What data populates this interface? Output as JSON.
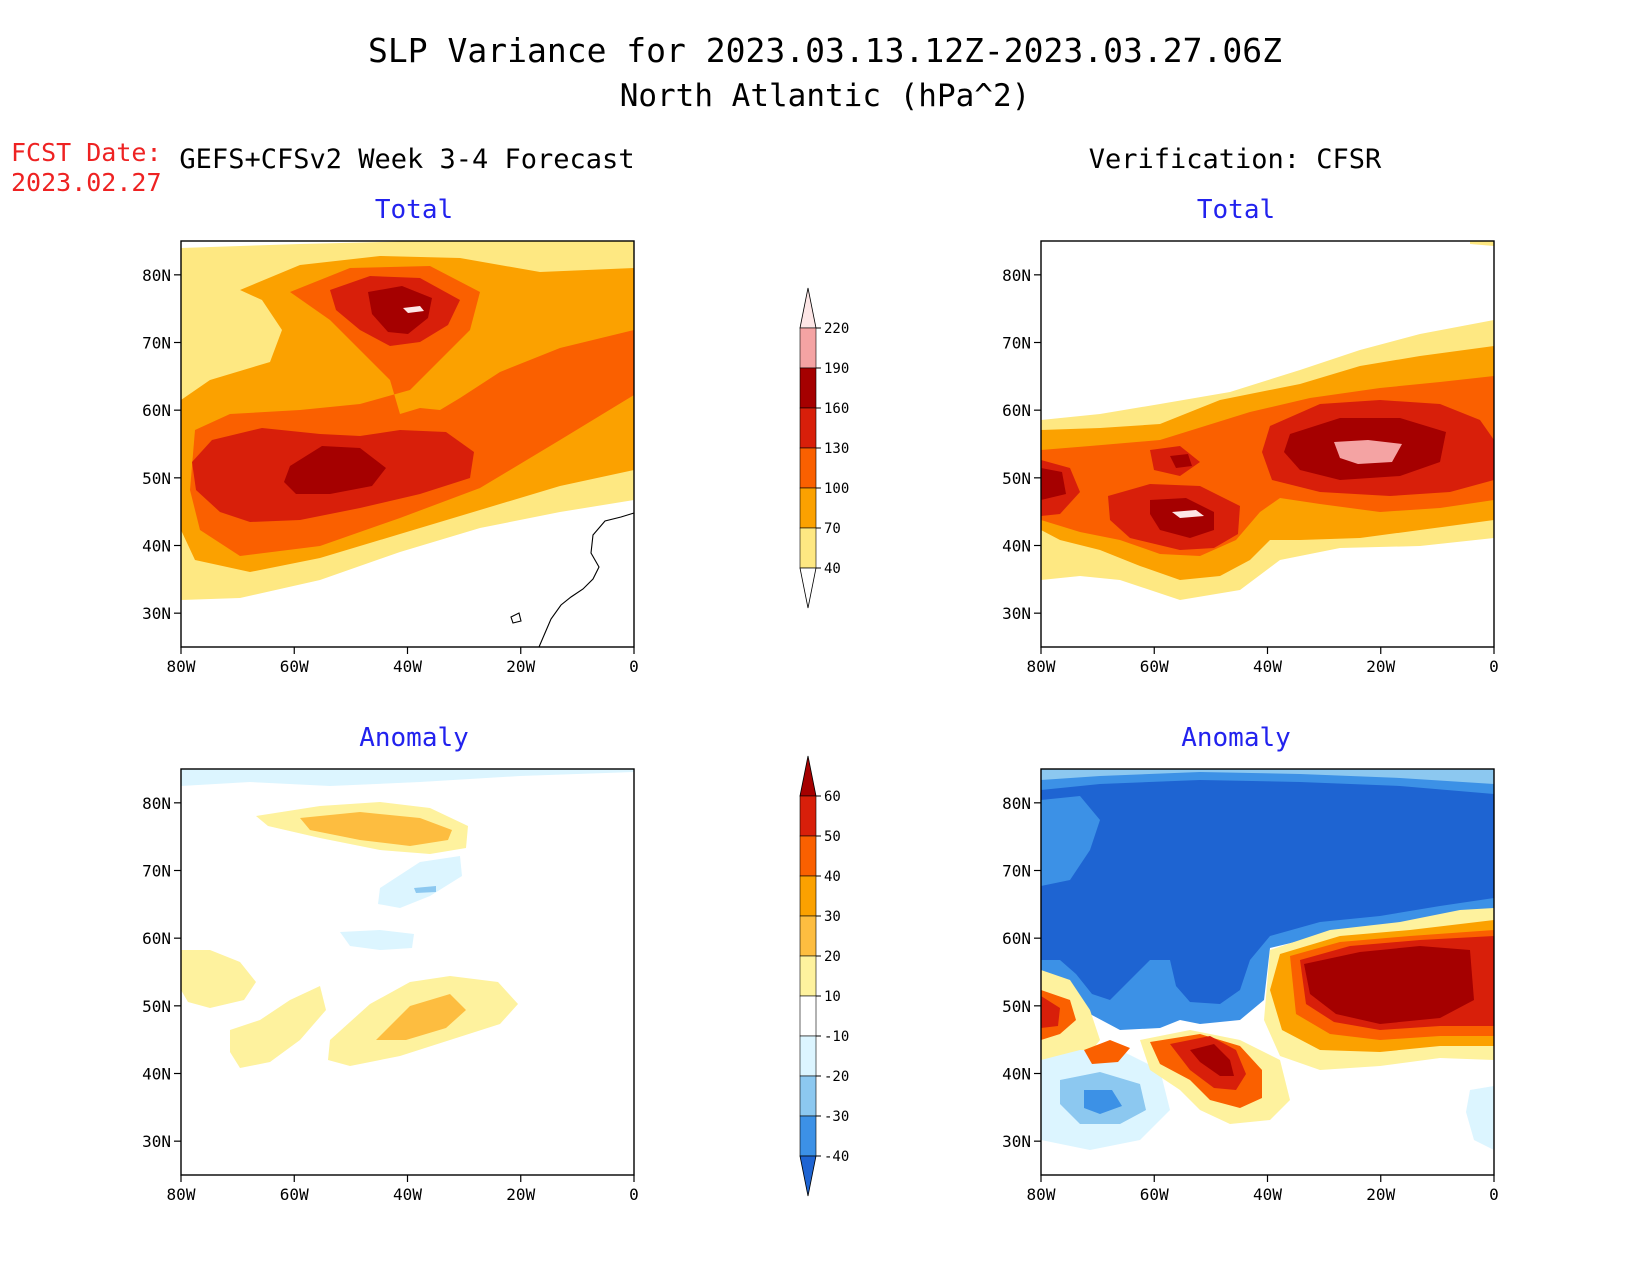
{
  "title": {
    "line1": "SLP Variance for 2023.03.13.12Z-2023.03.27.06Z",
    "line2": "North Atlantic (hPa^2)"
  },
  "fcst_date": {
    "label": "FCST Date:",
    "value": "2023.02.27"
  },
  "column_headers": {
    "forecast": "GEFS+CFSv2 Week 3-4 Forecast",
    "verification": "Verification: CFSR"
  },
  "panel_titles": {
    "total": "Total",
    "anomaly": "Anomaly"
  },
  "axes": {
    "lat_ticks": [
      "80N",
      "70N",
      "60N",
      "50N",
      "40N",
      "30N"
    ],
    "lon_ticks": [
      "80W",
      "60W",
      "40W",
      "20W",
      "0"
    ],
    "lat_range": [
      25,
      85
    ],
    "lon_range": [
      -80,
      0
    ]
  },
  "colorbars": {
    "total": {
      "labels": [
        "220",
        "190",
        "160",
        "130",
        "100",
        "70",
        "40"
      ],
      "colors": [
        "#fde6e6",
        "#f4a3a3",
        "#a50000",
        "#d81f0a",
        "#fa6000",
        "#fba100",
        "#fee882"
      ]
    },
    "anomaly": {
      "labels": [
        "60",
        "50",
        "40",
        "30",
        "20",
        "10",
        "-10",
        "-20",
        "-30",
        "-40"
      ],
      "colors": [
        "#a50000",
        "#d81f0a",
        "#fa6000",
        "#fba100",
        "#fdbd40",
        "#fef29e",
        "#ffffff",
        "#dcf5ff",
        "#8cc8f0",
        "#3c91e6",
        "#1e64d2"
      ]
    }
  }
}
